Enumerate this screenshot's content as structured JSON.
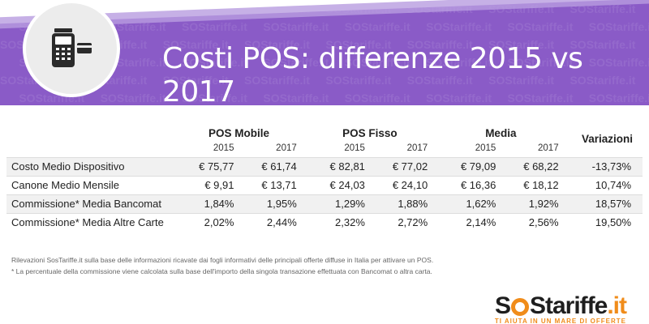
{
  "header": {
    "title": "Costi POS: differenze 2015 vs 2017",
    "watermark_text": "SOStariffe.it"
  },
  "table": {
    "groups": [
      "POS Mobile",
      "POS Fisso",
      "Media"
    ],
    "variation_header": "Variazioni",
    "years": [
      "2015",
      "2017"
    ],
    "rows": [
      {
        "label": "Costo Medio Dispositivo",
        "values": [
          "€ 75,77",
          "€ 61,74",
          "€ 82,81",
          "€ 77,02",
          "€ 79,09",
          "€ 68,22"
        ],
        "variation": "-13,73%"
      },
      {
        "label": "Canone Medio Mensile",
        "values": [
          "€ 9,91",
          "€ 13,71",
          "€ 24,03",
          "€ 24,10",
          "€ 16,36",
          "€ 18,12"
        ],
        "variation": "10,74%"
      },
      {
        "label": "Commissione* Media Bancomat",
        "values": [
          "1,84%",
          "1,95%",
          "1,29%",
          "1,88%",
          "1,62%",
          "1,92%"
        ],
        "variation": "18,57%"
      },
      {
        "label": "Commissione* Media Altre Carte",
        "values": [
          "2,02%",
          "2,44%",
          "2,32%",
          "2,72%",
          "2,14%",
          "2,56%"
        ],
        "variation": "19,50%"
      }
    ]
  },
  "notes": {
    "line1": "Rilevazioni SosTariffe.it sulla base delle informazioni ricavate dai fogli informativi delle principali offerte diffuse in Italia per attivare un POS.",
    "line2": "* La percentuale della commissione viene calcolata sulla base dell'importo della singola transazione effettuata con Bancomat o altra carta."
  },
  "logo": {
    "part1": "S",
    "part2": "Stariffe",
    "part3": ".it",
    "tagline": "TI AIUTA IN UN MARE DI OFFERTE"
  },
  "colors": {
    "banner": "#8a5bc7",
    "accent": "#f08c1a"
  },
  "icon": "pos-terminal-icon"
}
